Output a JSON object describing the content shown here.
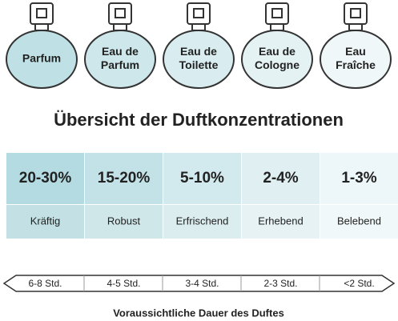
{
  "bottles": [
    {
      "lines": [
        "Parfum"
      ]
    },
    {
      "lines": [
        "Eau de",
        "Parfum"
      ]
    },
    {
      "lines": [
        "Eau de",
        "Toilette"
      ]
    },
    {
      "lines": [
        "Eau de",
        "Cologne"
      ]
    },
    {
      "lines": [
        "Eau",
        "Fraîche"
      ]
    }
  ],
  "title": "Übersicht der Duftkonzentrationen",
  "table": {
    "rows": [
      [
        "20-30%",
        "15-20%",
        "5-10%",
        "2-4%",
        "1-3%"
      ],
      [
        "Kräftig",
        "Robust",
        "Erfrischend",
        "Erhebend",
        "Belebend"
      ]
    ]
  },
  "durations": [
    "6-8 Std.",
    "4-5 Std.",
    "3-4 Std.",
    "2-3 Std.",
    "<2 Std."
  ],
  "footer": "Voraussichtliche Dauer des Duftes"
}
